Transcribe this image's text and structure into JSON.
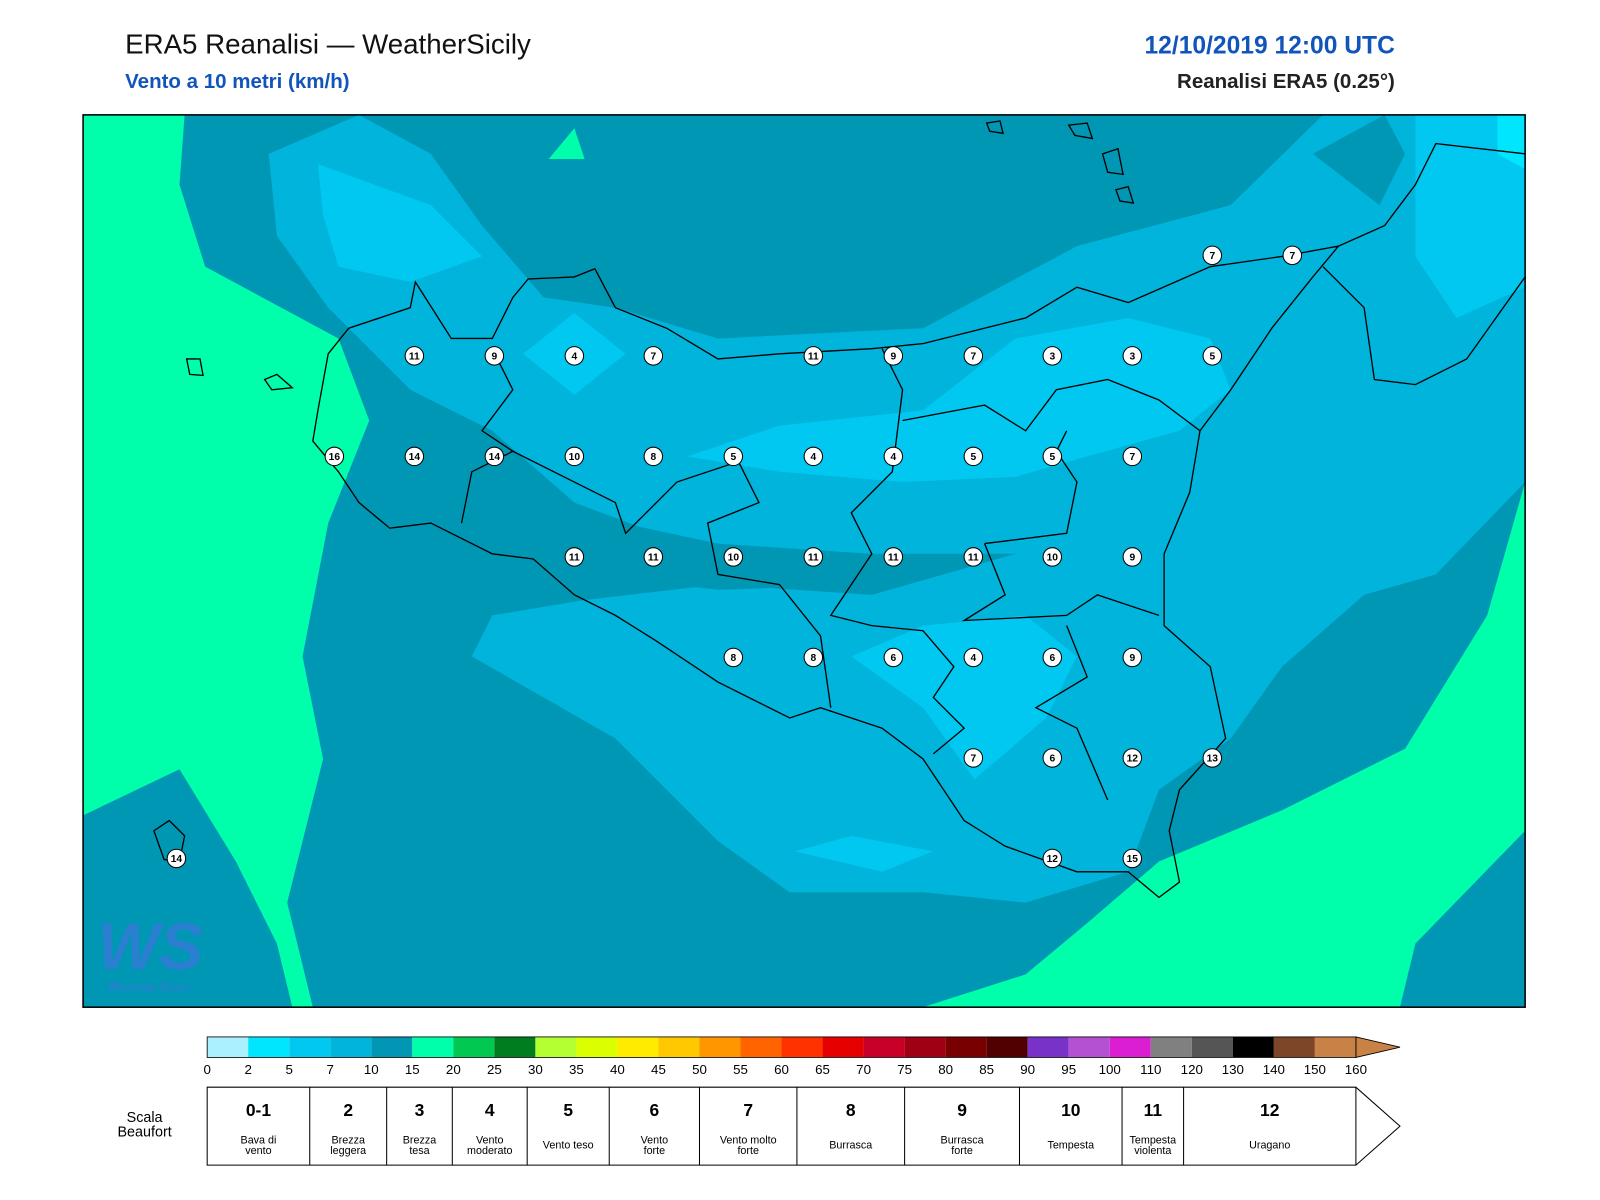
{
  "header": {
    "title": "ERA5 Reanalisi — WeatherSicily",
    "subtitle": "Vento a 10 metri (km/h)",
    "datetime": "12/10/2019 12:00 UTC",
    "source": "Reanalisi ERA5 (0.25°)"
  },
  "stations": [
    11,
    9,
    4,
    7,
    11,
    9,
    7,
    3,
    3,
    5,
    16,
    14,
    14,
    10,
    8,
    5,
    4,
    4,
    5,
    5,
    7,
    11,
    11,
    10,
    11,
    11,
    11,
    10,
    9,
    8,
    8,
    6,
    4,
    6,
    9,
    7,
    6,
    12,
    13,
    12,
    15,
    14,
    7,
    7
  ],
  "logo": {
    "mark": "WS",
    "text": "Weather Sicily"
  },
  "colorbar": {
    "ticks": [
      0,
      2,
      5,
      7,
      10,
      15,
      20,
      25,
      30,
      35,
      40,
      45,
      50,
      55,
      60,
      65,
      70,
      75,
      80,
      85,
      90,
      95,
      100,
      110,
      120,
      130,
      140,
      150,
      160
    ],
    "colors": [
      "#aaf0ff",
      "#00e6ff",
      "#00c8f0",
      "#00b4dc",
      "#0096b4",
      "#00ffaa",
      "#00c850",
      "#007d1e",
      "#b4ff32",
      "#dcff00",
      "#ffeb00",
      "#ffc800",
      "#ff9600",
      "#ff6400",
      "#ff3200",
      "#e60000",
      "#c80028",
      "#a00014",
      "#780000",
      "#500000",
      "#7832c8",
      "#b450d2",
      "#dc1ed2",
      "#808080",
      "#555555",
      "#000000",
      "#7d4628",
      "#c88246"
    ]
  },
  "beaufort": {
    "label": [
      "Scala",
      "Beaufort"
    ],
    "levels": [
      {
        "force": "0-1",
        "name": [
          "Bava di",
          "vento"
        ]
      },
      {
        "force": "2",
        "name": [
          "Brezza",
          "leggera"
        ]
      },
      {
        "force": "3",
        "name": [
          "Brezza",
          "tesa"
        ]
      },
      {
        "force": "4",
        "name": [
          "Vento",
          "moderato"
        ]
      },
      {
        "force": "5",
        "name": [
          "Vento teso"
        ]
      },
      {
        "force": "6",
        "name": [
          "Vento",
          "forte"
        ]
      },
      {
        "force": "7",
        "name": [
          "Vento molto",
          "forte"
        ]
      },
      {
        "force": "8",
        "name": [
          "Burrasca"
        ]
      },
      {
        "force": "9",
        "name": [
          "Burrasca",
          "forte"
        ]
      },
      {
        "force": "10",
        "name": [
          "Tempesta"
        ]
      },
      {
        "force": "11",
        "name": [
          "Tempesta",
          "violenta"
        ]
      },
      {
        "force": "12",
        "name": [
          "Uragano"
        ]
      }
    ]
  }
}
